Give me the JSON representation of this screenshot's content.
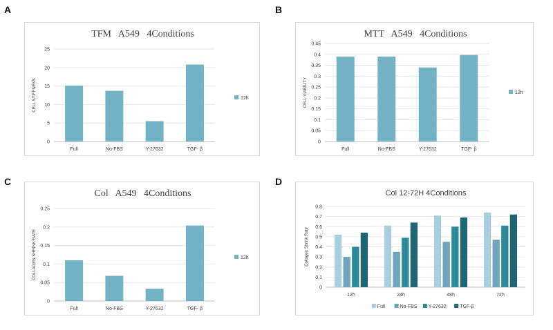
{
  "panels": [
    "A",
    "B",
    "C",
    "D"
  ],
  "chart_data": [
    {
      "id": "A",
      "type": "bar",
      "title": "TFM   A549   4Conditions",
      "ylabel": "CELL STIFFNESS",
      "categories": [
        "Full",
        "No-FBS",
        "Y-27632",
        "TGF- β"
      ],
      "series": [
        {
          "name": "12h",
          "values": [
            15.1,
            13.7,
            5.5,
            20.8
          ],
          "color": "#73b2c5"
        }
      ],
      "ylim": [
        0,
        25
      ],
      "yticks": [
        0,
        5,
        10,
        15,
        20,
        25
      ],
      "ytick_labels": [
        "0",
        "5",
        "10",
        "15",
        "20",
        "25"
      ],
      "legend": "right",
      "grid": true
    },
    {
      "id": "B",
      "type": "bar",
      "title": "MTT   A549   4Conditions",
      "ylabel": "CELL VIABILITY",
      "categories": [
        "Full",
        "No-FBS",
        "Y-27632",
        "TGF- β"
      ],
      "series": [
        {
          "name": "12h",
          "values": [
            0.39,
            0.39,
            0.34,
            0.397
          ],
          "color": "#73b2c5"
        }
      ],
      "ylim": [
        0,
        0.45
      ],
      "yticks": [
        0,
        0.05,
        0.1,
        0.15,
        0.2,
        0.25,
        0.3,
        0.35,
        0.4,
        0.45
      ],
      "ytick_labels": [
        "0",
        "0.05",
        "0.1",
        "0.15",
        "0.2",
        "0.25",
        "0.3",
        "0.35",
        "0.4",
        "0.45"
      ],
      "legend": "right",
      "grid": true
    },
    {
      "id": "C",
      "type": "bar",
      "title": "Col   A549   4Conditions",
      "ylabel": "COLLAGEN SHRINK RATE",
      "categories": [
        "Full",
        "No-FBS",
        "Y-27632",
        "TGF- β"
      ],
      "series": [
        {
          "name": "12h",
          "values": [
            0.11,
            0.068,
            0.033,
            0.204
          ],
          "color": "#73b2c5"
        }
      ],
      "ylim": [
        0,
        0.25
      ],
      "yticks": [
        0,
        0.05,
        0.1,
        0.15,
        0.2,
        0.25
      ],
      "ytick_labels": [
        "0",
        "0.05",
        "0.1",
        "0.15",
        "0.2",
        "0.25"
      ],
      "legend": "right",
      "grid": true
    },
    {
      "id": "D",
      "type": "bar",
      "title": "Col 12-72H 4Conditions",
      "ylabel": "Collagen Shrink Rate",
      "categories": [
        "12h",
        "24h",
        "48h",
        "72h"
      ],
      "series": [
        {
          "name": "Full",
          "values": [
            0.52,
            0.61,
            0.71,
            0.74
          ],
          "color": "#a9cfdc"
        },
        {
          "name": "No-FBS",
          "values": [
            0.3,
            0.35,
            0.45,
            0.47
          ],
          "color": "#6fa5ba"
        },
        {
          "name": "Y-27632",
          "values": [
            0.4,
            0.49,
            0.6,
            0.61
          ],
          "color": "#2e8b9a"
        },
        {
          "name": "TGF-β",
          "values": [
            0.54,
            0.64,
            0.69,
            0.72
          ],
          "color": "#1f6675"
        }
      ],
      "ylim": [
        0,
        0.8
      ],
      "yticks": [
        0,
        0.1,
        0.2,
        0.3,
        0.4,
        0.5,
        0.6,
        0.7,
        0.8
      ],
      "ytick_labels": [
        "0",
        "0.1",
        "0.2",
        "0.3",
        "0.4",
        "0.5",
        "0.6",
        "0.7",
        "0.8"
      ],
      "legend": "bottom",
      "grid": true
    }
  ]
}
